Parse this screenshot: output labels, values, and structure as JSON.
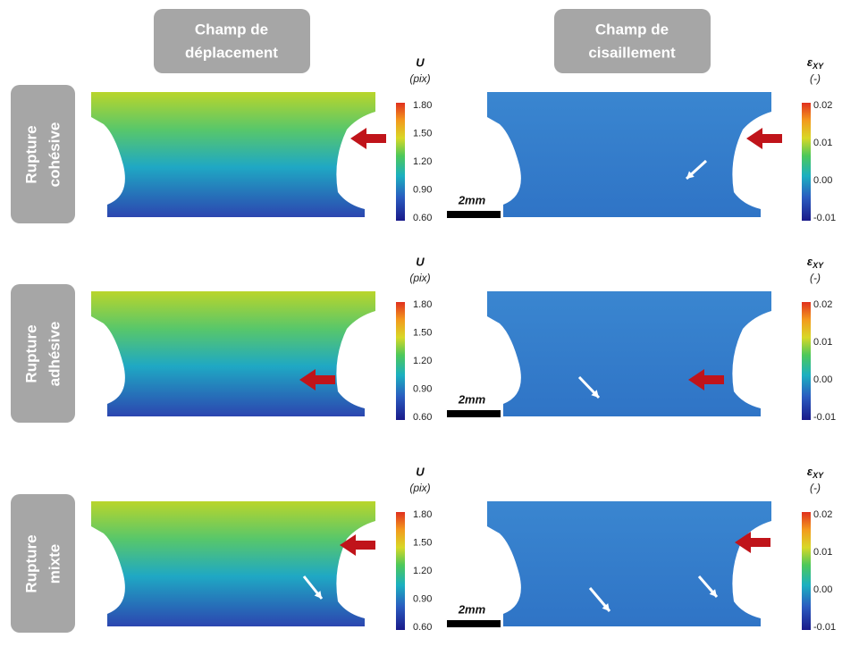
{
  "headers": [
    {
      "lines": [
        "Champ de",
        "déplacement"
      ]
    },
    {
      "lines": [
        "Champ de",
        "cisaillement"
      ]
    }
  ],
  "rows": [
    {
      "lines": [
        "Rupture",
        "cohésive"
      ]
    },
    {
      "lines": [
        "Rupture",
        "adhésive"
      ]
    },
    {
      "lines": [
        "Rupture",
        "mixte"
      ]
    }
  ],
  "displacement_scale": {
    "symbol": "U",
    "unit": "(pix)",
    "ticks": [
      "1.80",
      "1.50",
      "1.20",
      "0.90",
      "0.60"
    ]
  },
  "shear_scale": {
    "symbol": "ε",
    "subscript": "XY",
    "unit": "(-)",
    "ticks": [
      "0.02",
      "0.01",
      "0.00",
      "-0.01"
    ]
  },
  "scale_bar": "2mm"
}
